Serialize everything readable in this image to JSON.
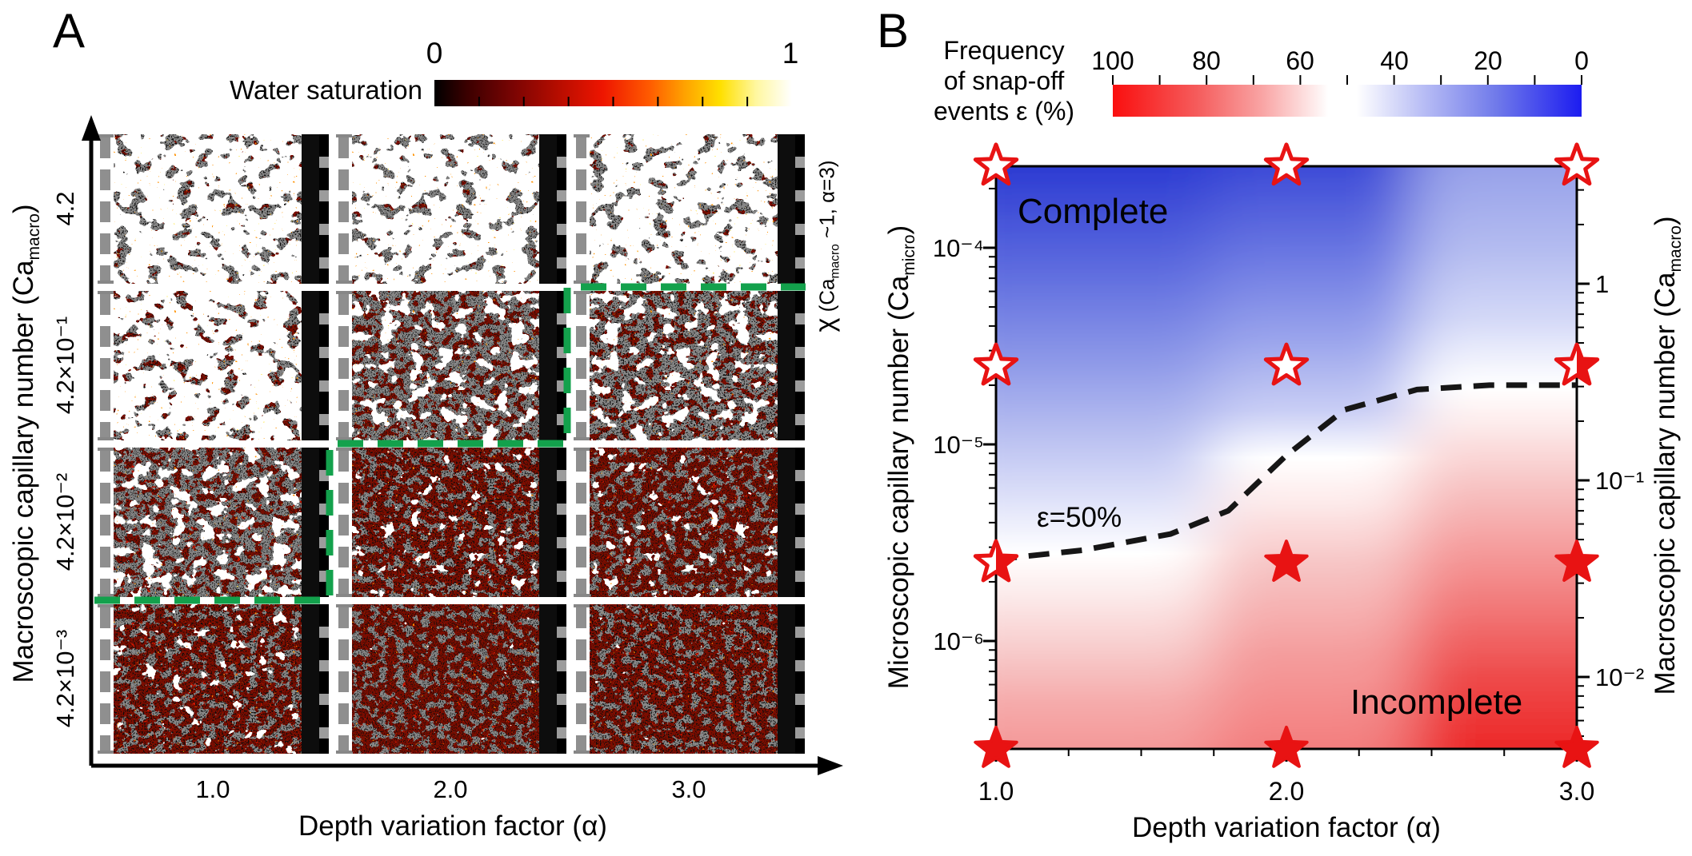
{
  "colors": {
    "star_red": "#e81313",
    "boundary_green": "#13a14c",
    "contour_dash_black": "#161616",
    "colorbar_a_ends": [
      "#000000",
      "#ffffff"
    ],
    "colorbar_b_ends": [
      "#fa0f0f",
      "#1c1cf0"
    ]
  },
  "panel_a": {
    "label": "A",
    "colorbar": {
      "title": "Water saturation",
      "min_label": "0",
      "max_label": "1"
    },
    "y_axis": {
      "title_prefix": "Macroscopic capillary number (Ca",
      "title_sub": "macro",
      "title_suffix": ")",
      "tick_labels": [
        "4.2",
        "4.2×10⁻¹",
        "4.2×10⁻²",
        "4.2×10⁻³"
      ]
    },
    "x_axis": {
      "title": "Depth variation factor (α)",
      "tick_labels": [
        "1.0",
        "2.0",
        "3.0"
      ]
    },
    "annotation": {
      "chi": "χ",
      "prefix": " (Ca",
      "sub": "macro",
      "suffix": " ~1, α=3)"
    }
  },
  "panel_b": {
    "label": "B",
    "colorbar": {
      "title_lines": [
        "Frequency",
        "of snap-off",
        "events ε (%)"
      ],
      "tick_labels": [
        "100",
        "80",
        "60",
        "40",
        "20",
        "0"
      ]
    },
    "left_axis": {
      "title_prefix": "Microscopic capillary number (Ca",
      "title_sub": "micro",
      "title_suffix": ")",
      "tick_labels": [
        "10⁻⁴",
        "10⁻⁵",
        "10⁻⁶"
      ]
    },
    "right_axis": {
      "title_prefix": "Macroscopic capillary number (Ca",
      "title_sub": "macro",
      "title_suffix": ")",
      "tick_labels": [
        "1",
        "10⁻¹",
        "10⁻²"
      ]
    },
    "x_axis": {
      "title": "Depth variation factor (α)",
      "tick_labels": [
        "1.0",
        "2.0",
        "3.0"
      ]
    },
    "region_labels": {
      "complete": "Complete",
      "incomplete": "Incomplete"
    },
    "contour_label": "ε=50%"
  },
  "chart_data": [
    {
      "panel": "A",
      "type": "heatmap",
      "title": "Water saturation maps of porous media displacement simulations",
      "xlabel": "Depth variation factor (α)",
      "x_values": [
        1.0,
        2.0,
        3.0
      ],
      "ylabel": "Macroscopic capillary number (Ca_macro)",
      "y_values": [
        4.2,
        0.42,
        0.042,
        0.0042
      ],
      "colorbar": {
        "label": "Water saturation",
        "range": [
          0,
          1
        ],
        "colormap": "black-darkred-red-orange-yellow-white"
      },
      "saturation_qualitative": [
        [
          "high",
          "high",
          "high"
        ],
        [
          "high",
          "medium",
          "medium"
        ],
        [
          "medium",
          "medium",
          "low"
        ],
        [
          "low",
          "low",
          "low"
        ]
      ],
      "boundary_note": "green dashed staircase separates complete displacement (upper left) from incomplete (lower right)",
      "annotation": "χ (Ca_macro ~1, α=3)"
    },
    {
      "panel": "B",
      "type": "heatmap",
      "title": "Frequency of snap-off events ε (%)",
      "xlabel": "Depth variation factor (α)",
      "x_range": [
        1.0,
        3.0
      ],
      "ylabel_left": "Microscopic capillary number (Ca_micro)",
      "y_range_left": [
        2.8e-07,
        0.00026
      ],
      "y_scale": "log",
      "ylabel_right": "Macroscopic capillary number (Ca_macro)",
      "colorbar": {
        "label": "Frequency of snap-off events ε (%)",
        "range": [
          0,
          100
        ],
        "ticks": [
          100,
          80,
          60,
          40,
          20,
          0
        ],
        "colormap": "red(100)-white(50)-blue(0)"
      },
      "regions": {
        "top_left": "Complete",
        "bottom_right": "Incomplete"
      },
      "contour_line": {
        "label": "ε=50%",
        "points": [
          [
            1.0,
            2.6e-06
          ],
          [
            1.3,
            2.9e-06
          ],
          [
            1.6,
            3.5e-06
          ],
          [
            1.8,
            4.6e-06
          ],
          [
            2.0,
            8.8e-06
          ],
          [
            2.2,
            1.5e-05
          ],
          [
            2.45,
            1.9e-05
          ],
          [
            2.7,
            2e-05
          ],
          [
            3.0,
            2e-05
          ]
        ]
      },
      "stars": [
        {
          "alpha": 1.0,
          "ca_micro": 0.00026,
          "marker": "open"
        },
        {
          "alpha": 2.0,
          "ca_micro": 0.00026,
          "marker": "open"
        },
        {
          "alpha": 3.0,
          "ca_micro": 0.00026,
          "marker": "open"
        },
        {
          "alpha": 1.0,
          "ca_micro": 2.5e-05,
          "marker": "open"
        },
        {
          "alpha": 2.0,
          "ca_micro": 2.5e-05,
          "marker": "open"
        },
        {
          "alpha": 3.0,
          "ca_micro": 2.5e-05,
          "marker": "half"
        },
        {
          "alpha": 1.0,
          "ca_micro": 2.5e-06,
          "marker": "half"
        },
        {
          "alpha": 2.0,
          "ca_micro": 2.5e-06,
          "marker": "filled"
        },
        {
          "alpha": 3.0,
          "ca_micro": 2.5e-06,
          "marker": "filled"
        },
        {
          "alpha": 1.0,
          "ca_micro": 2.8e-07,
          "marker": "filled"
        },
        {
          "alpha": 2.0,
          "ca_micro": 2.8e-07,
          "marker": "filled"
        },
        {
          "alpha": 3.0,
          "ca_micro": 2.8e-07,
          "marker": "filled"
        }
      ]
    }
  ]
}
